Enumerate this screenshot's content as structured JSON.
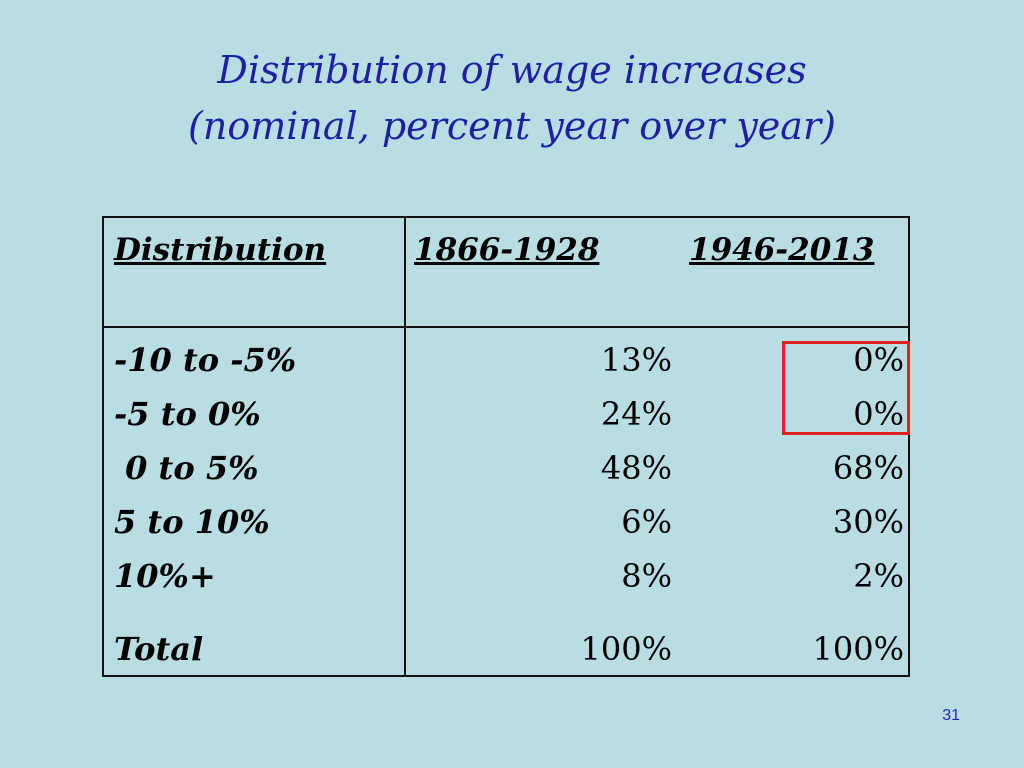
{
  "title": {
    "line1": "Distribution of wage increases",
    "line2": "(nominal, percent year over year)"
  },
  "table": {
    "headers": {
      "distribution": "Distribution",
      "period1": "1866-1928",
      "period2": "1946-2013"
    },
    "rows": [
      {
        "label": "-10 to -5%",
        "v1": "13%",
        "v2": "0%"
      },
      {
        "label": "-5 to 0%",
        "v1": "24%",
        "v2": "0%"
      },
      {
        "label": " 0 to 5%",
        "v1": "48%",
        "v2": "68%"
      },
      {
        "label": "5 to 10%",
        "v1": "6%",
        "v2": "30%"
      },
      {
        "label": "10%+",
        "v1": "8%",
        "v2": "2%"
      },
      {
        "label": "Total",
        "v1": "100%",
        "v2": "100%"
      }
    ]
  },
  "highlight_color": "#e02020",
  "slide_number": "31"
}
